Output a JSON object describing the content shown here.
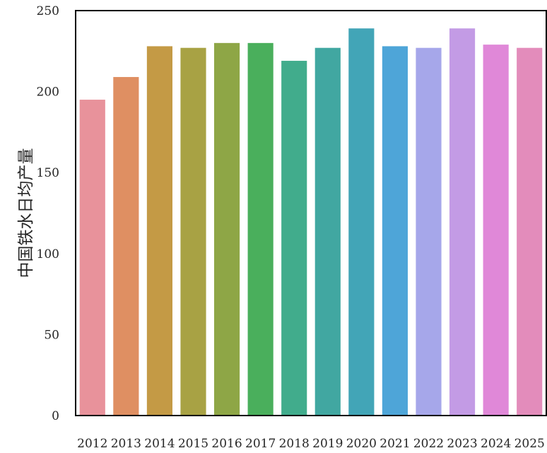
{
  "chart_data": {
    "type": "bar",
    "title": "",
    "xlabel": "",
    "ylabel": "中国铁水日均产量",
    "categories": [
      "2012",
      "2013",
      "2014",
      "2015",
      "2016",
      "2017",
      "2018",
      "2019",
      "2020",
      "2021",
      "2022",
      "2023",
      "2024",
      "2025"
    ],
    "values": [
      195,
      209,
      228,
      227,
      230,
      230,
      219,
      227,
      239,
      228,
      227,
      239,
      229,
      227
    ],
    "colors": [
      "#e8929b",
      "#df8f62",
      "#c49a45",
      "#a8a244",
      "#8ea646",
      "#4aaf5c",
      "#41ac8c",
      "#41a7a1",
      "#42a5b7",
      "#4ea5d8",
      "#a6a7ea",
      "#c39be5",
      "#e088d8",
      "#e38cbb"
    ],
    "ylim": [
      0,
      250
    ],
    "yticks": [
      0,
      50,
      100,
      150,
      200,
      250
    ],
    "grid": false,
    "legend": "none"
  }
}
